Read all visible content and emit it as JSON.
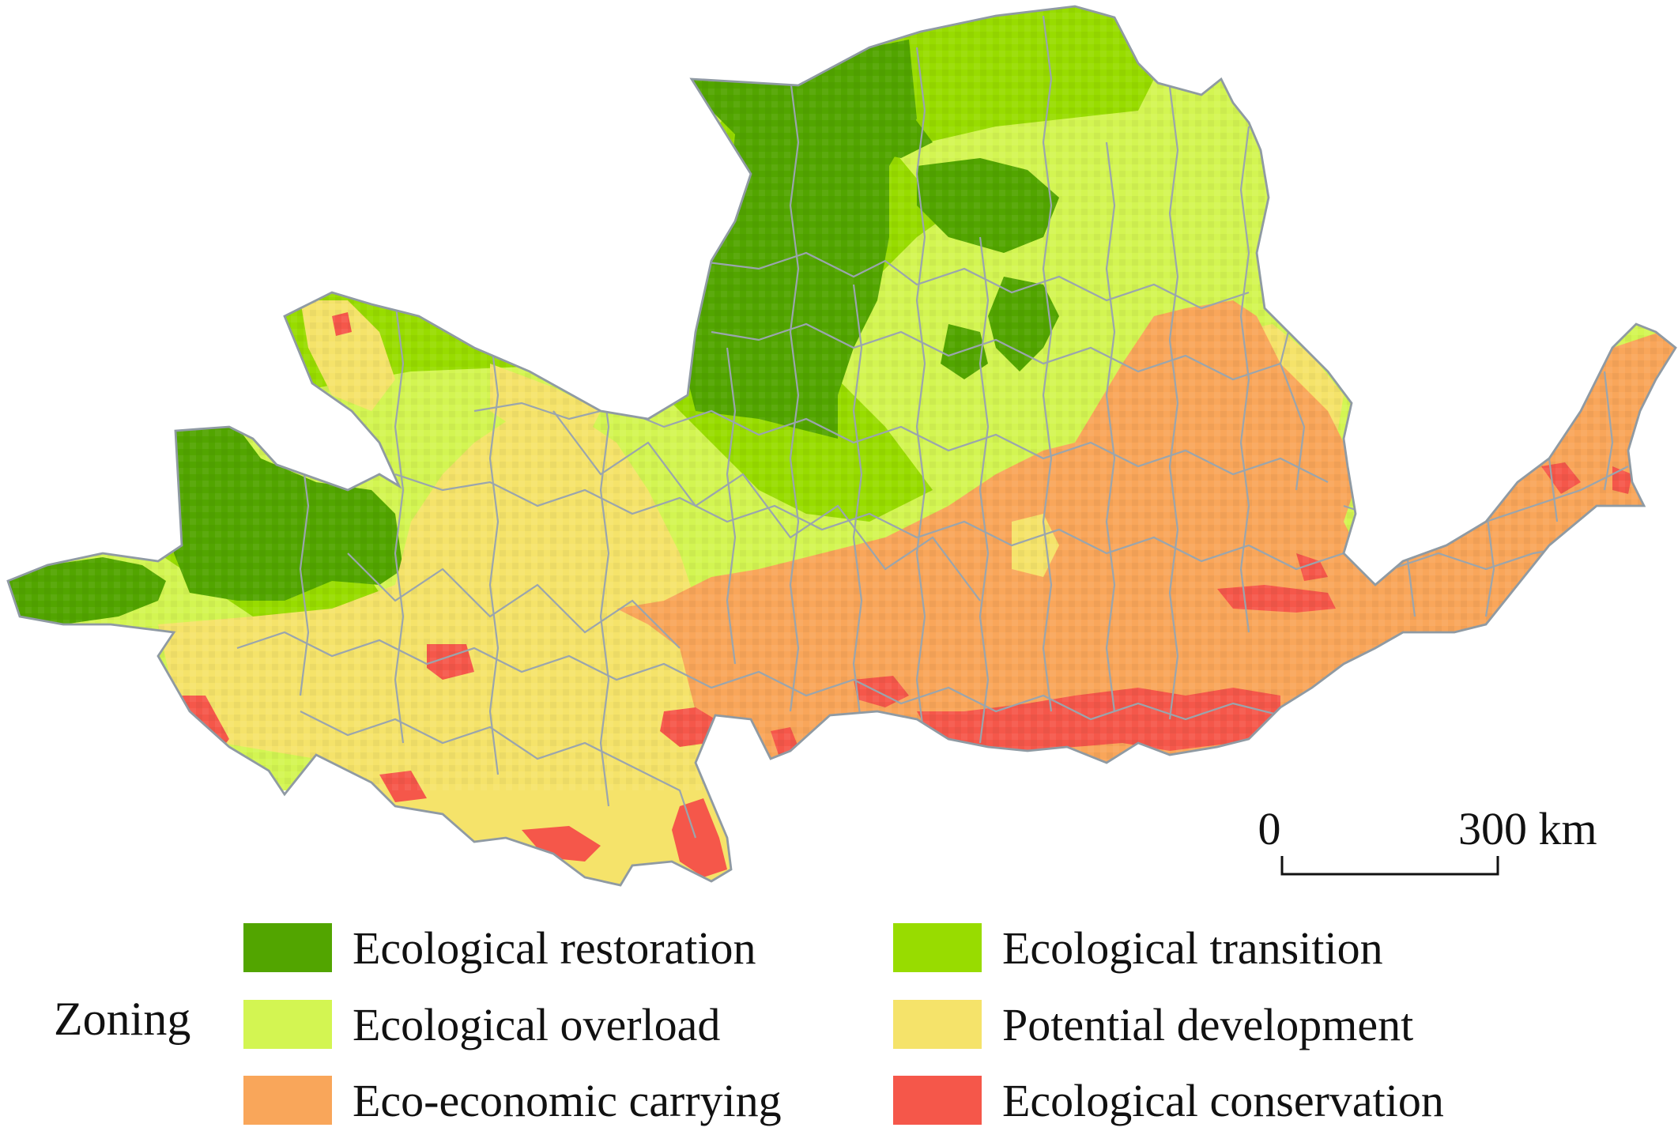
{
  "legend": {
    "title": "Zoning",
    "items": [
      {
        "label": "Ecological restoration",
        "color": "#52a500"
      },
      {
        "label": "Ecological transition",
        "color": "#98dc00"
      },
      {
        "label": "Ecological overload",
        "color": "#d3f552"
      },
      {
        "label": "Potential development",
        "color": "#f5e36a"
      },
      {
        "label": "Eco-economic carrying",
        "color": "#f9a65a"
      },
      {
        "label": "Ecological conservation",
        "color": "#f5574a"
      }
    ]
  },
  "scale_bar": {
    "start_label": "0",
    "end_label": "300 km"
  },
  "colors": {
    "boundary": "#9aa5ad"
  }
}
